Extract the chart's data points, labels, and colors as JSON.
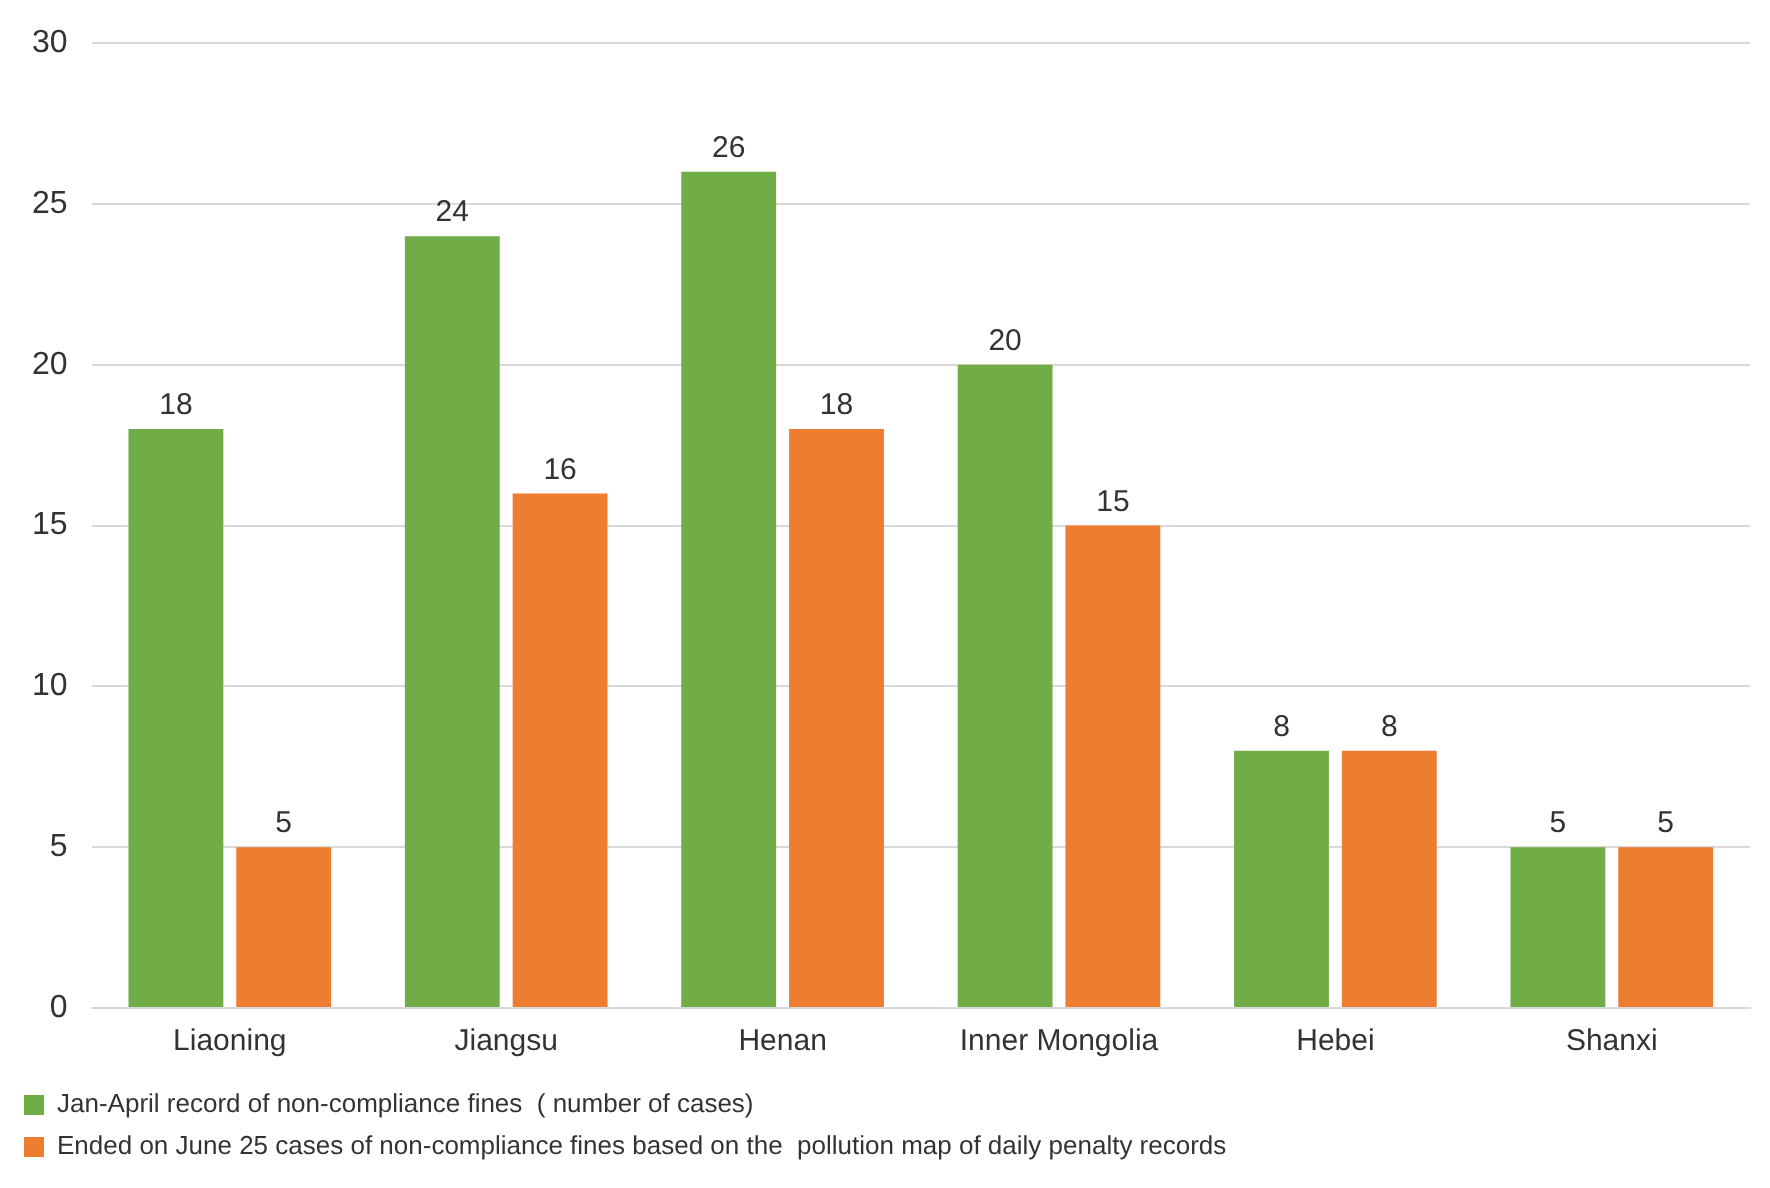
{
  "chart_data": {
    "type": "bar",
    "categories": [
      "Liaoning",
      "Jiangsu",
      "Henan",
      "Inner Mongolia",
      "Hebei",
      "Shanxi"
    ],
    "series": [
      {
        "name": "Jan-April record of non-compliance fines  ( number of cases)",
        "color": "#70ad47",
        "values": [
          18,
          24,
          26,
          20,
          8,
          5
        ]
      },
      {
        "name": "Ended on June 25 cases of non-compliance fines based on the  pollution map of daily penalty records",
        "color": "#ed7d31",
        "values": [
          5,
          16,
          18,
          15,
          8,
          5
        ]
      }
    ],
    "ylim": [
      0,
      30
    ],
    "yticks": [
      0,
      5,
      10,
      15,
      20,
      25,
      30
    ],
    "grid": "y",
    "legend": "bottom left",
    "data_labels": true
  }
}
